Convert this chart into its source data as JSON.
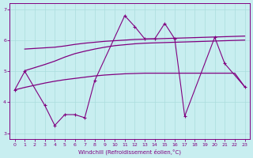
{
  "xlabel": "Windchill (Refroidissement éolien,°C)",
  "bg_color": "#c8eef0",
  "line_color": "#800080",
  "grid_color": "#aadddd",
  "ylim": [
    2.8,
    7.2
  ],
  "xlim": [
    -0.5,
    23.5
  ],
  "yticks": [
    3,
    4,
    5,
    6,
    7
  ],
  "xticks": [
    0,
    1,
    2,
    3,
    4,
    5,
    6,
    7,
    8,
    9,
    10,
    11,
    12,
    13,
    14,
    15,
    16,
    17,
    18,
    19,
    20,
    21,
    22,
    23
  ],
  "smooth_upper_x": [
    1,
    2,
    3,
    4,
    5,
    6,
    7,
    8,
    9,
    10,
    11,
    12,
    13,
    14,
    15,
    16,
    17,
    18,
    19,
    20,
    21,
    22,
    23
  ],
  "smooth_upper_y": [
    5.72,
    5.74,
    5.76,
    5.78,
    5.82,
    5.87,
    5.91,
    5.94,
    5.97,
    5.99,
    6.01,
    6.03,
    6.04,
    6.05,
    6.06,
    6.07,
    6.08,
    6.09,
    6.1,
    6.11,
    6.12,
    6.13,
    6.14
  ],
  "smooth_mid_x": [
    1,
    2,
    3,
    4,
    5,
    6,
    7,
    8,
    9,
    10,
    11,
    12,
    13,
    14,
    15,
    16,
    17,
    18,
    19,
    20,
    21,
    22,
    23
  ],
  "smooth_mid_y": [
    5.02,
    5.12,
    5.22,
    5.33,
    5.46,
    5.57,
    5.65,
    5.72,
    5.78,
    5.83,
    5.86,
    5.89,
    5.91,
    5.92,
    5.93,
    5.94,
    5.95,
    5.96,
    5.97,
    5.98,
    5.99,
    6.0,
    6.01
  ],
  "smooth_lower_x": [
    0,
    1,
    2,
    3,
    4,
    5,
    6,
    7,
    8,
    9,
    10,
    11,
    12,
    13,
    14,
    15,
    16,
    17,
    18,
    19,
    20,
    21,
    22,
    23
  ],
  "smooth_lower_y": [
    4.4,
    4.48,
    4.55,
    4.62,
    4.68,
    4.73,
    4.77,
    4.81,
    4.85,
    4.88,
    4.9,
    4.92,
    4.93,
    4.94,
    4.94,
    4.94,
    4.94,
    4.94,
    4.94,
    4.94,
    4.94,
    4.94,
    4.94,
    4.5
  ],
  "jagged_x": [
    0,
    1,
    3,
    4,
    5,
    6,
    7,
    8,
    11,
    12,
    13,
    14,
    15,
    16,
    17,
    20,
    21,
    23
  ],
  "jagged_y": [
    4.4,
    5.0,
    3.9,
    3.25,
    3.6,
    3.6,
    3.5,
    4.7,
    6.8,
    6.45,
    6.05,
    6.05,
    6.55,
    6.05,
    3.55,
    6.1,
    5.25,
    4.5
  ]
}
